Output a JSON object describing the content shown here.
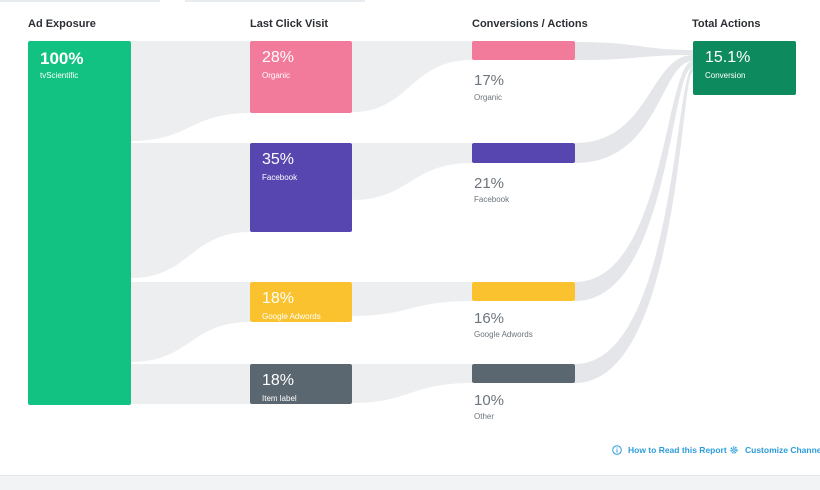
{
  "headers": {
    "ad_exposure": "Ad Exposure",
    "last_click": "Last Click Visit",
    "conversions": "Conversions / Actions",
    "total": "Total Actions"
  },
  "source": {
    "percent": "100%",
    "label": "tvScientific",
    "color": "#12c283"
  },
  "channels": [
    {
      "percent": "28%",
      "label": "Organic",
      "color": "#f27a9b",
      "conv_percent": "17%",
      "conv_label": "Organic"
    },
    {
      "percent": "35%",
      "label": "Facebook",
      "color": "#5746af",
      "conv_percent": "21%",
      "conv_label": "Facebook"
    },
    {
      "percent": "18%",
      "label": "Google Adwords",
      "color": "#f9c22e",
      "conv_percent": "16%",
      "conv_label": "Google Adwords"
    },
    {
      "percent": "18%",
      "label": "Item label",
      "color": "#5b6770",
      "conv_percent": "10%",
      "conv_label": "Other"
    }
  ],
  "total": {
    "percent": "15.1%",
    "label": "Conversion",
    "color": "#0e8a5f"
  },
  "footer": {
    "how_to_read": "How to Read this Report",
    "customize": "Customize Channels",
    "icon_info": "info-icon",
    "icon_gear": "gear-icon",
    "link_color": "#2d9cdb"
  }
}
